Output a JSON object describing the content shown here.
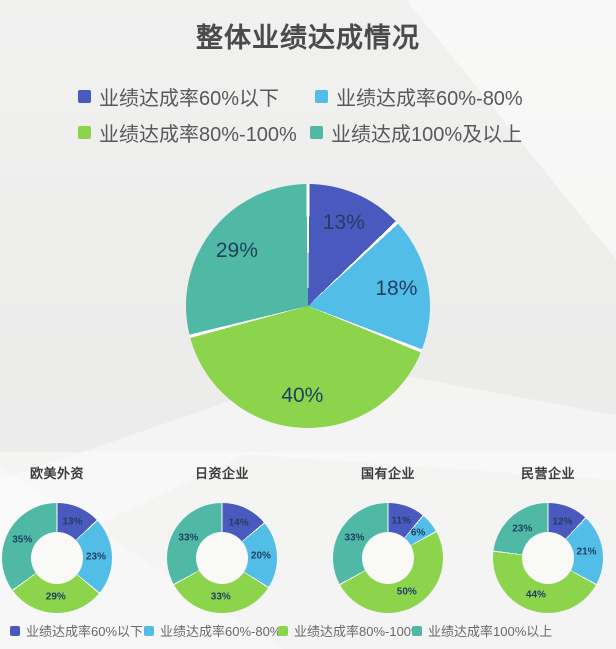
{
  "page": {
    "title": "整体业绩达成情况"
  },
  "colors": {
    "categories": [
      "#4a59bd",
      "#52bde6",
      "#8dd44d",
      "#4fb9a5"
    ],
    "slice_label": "#1f4063",
    "legend_text": "#58595b",
    "title_text": "#4b4b4b"
  },
  "legend_top": {
    "items": [
      {
        "label": "业绩达成率60%以下",
        "swatch": "category-1"
      },
      {
        "label": "业绩达成率60%-80%",
        "swatch": "category-2"
      },
      {
        "label": "业绩达成率80%-100%",
        "swatch": "category-3"
      },
      {
        "label": "业绩达成100%及以上",
        "swatch": "category-4"
      }
    ]
  },
  "legend_bottom": {
    "items": [
      {
        "label": "业绩达成率60%以下",
        "swatch": "category-1"
      },
      {
        "label": "业绩达成率60%-80%",
        "swatch": "category-2"
      },
      {
        "label": "业绩达成率80%-100%",
        "swatch": "category-3"
      },
      {
        "label": "业绩达成率100%以上",
        "swatch": "category-4"
      }
    ]
  },
  "chart_data": [
    {
      "type": "pie",
      "title": "整体业绩达成情况",
      "categories": [
        "业绩达成率60%以下",
        "业绩达成率60%-80%",
        "业绩达成率80%-100%",
        "业绩达成100%及以上"
      ],
      "values": [
        13,
        18,
        40,
        29
      ],
      "data_labels": [
        "13%",
        "18%",
        "40%",
        "29%"
      ],
      "start_angle_deg": 0,
      "direction": "clockwise",
      "legend_position": "top"
    },
    {
      "type": "donut",
      "title": "欧美外资",
      "categories": [
        "业绩达成率60%以下",
        "业绩达成率60%-80%",
        "业绩达成率80%-100%",
        "业绩达成率100%以上"
      ],
      "values": [
        13,
        23,
        29,
        35
      ],
      "data_labels": [
        "13%",
        "23%",
        "29%",
        "35%"
      ]
    },
    {
      "type": "donut",
      "title": "日资企业",
      "categories": [
        "业绩达成率60%以下",
        "业绩达成率60%-80%",
        "业绩达成率80%-100%",
        "业绩达成率100%以上"
      ],
      "values": [
        14,
        20,
        33,
        33
      ],
      "data_labels": [
        "14%",
        "20%",
        "33%",
        "33%"
      ]
    },
    {
      "type": "donut",
      "title": "国有企业",
      "categories": [
        "业绩达成率60%以下",
        "业绩达成率60%-80%",
        "业绩达成率80%-100%",
        "业绩达成率100%以上"
      ],
      "values": [
        11,
        6,
        50,
        33
      ],
      "data_labels": [
        "11%",
        "6%",
        "50%",
        "33%"
      ]
    },
    {
      "type": "donut",
      "title": "民营企业",
      "categories": [
        "业绩达成率60%以下",
        "业绩达成率60%-80%",
        "业绩达成率80%-100%",
        "业绩达成率100%以上"
      ],
      "values": [
        12,
        21,
        44,
        23
      ],
      "data_labels": [
        "12%",
        "21%",
        "44%",
        "23%"
      ]
    }
  ]
}
